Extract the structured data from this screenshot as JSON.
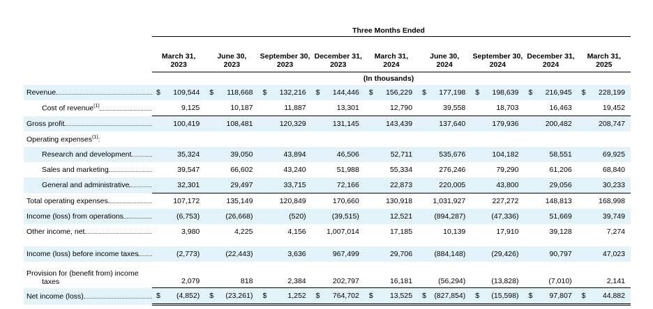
{
  "header": {
    "group_title": "Three Months Ended",
    "units": "(In thousands)",
    "periods": [
      {
        "l1": "March 31,",
        "l2": "2023"
      },
      {
        "l1": "June 30,",
        "l2": "2023"
      },
      {
        "l1": "September 30,",
        "l2": "2023"
      },
      {
        "l1": "December 31,",
        "l2": "2023"
      },
      {
        "l1": "March 31,",
        "l2": "2024"
      },
      {
        "l1": "June 30,",
        "l2": "2024"
      },
      {
        "l1": "September 30,",
        "l2": "2024"
      },
      {
        "l1": "December 31,",
        "l2": "2024"
      },
      {
        "l1": "March 31,",
        "l2": "2025"
      }
    ]
  },
  "footnote_mark": "(1)",
  "currency_symbol": "$",
  "rows": {
    "revenue": {
      "label": "Revenue",
      "values": [
        "109,544",
        "118,668",
        "132,216",
        "144,446",
        "156,229",
        "177,198",
        "198,639",
        "216,945",
        "228,199"
      ]
    },
    "cost_of_revenue": {
      "label": "Cost of revenue",
      "values": [
        "9,125",
        "10,187",
        "11,887",
        "13,301",
        "12,790",
        "39,558",
        "18,703",
        "16,463",
        "19,452"
      ]
    },
    "gross_profit": {
      "label": "Gross profit",
      "values": [
        "100,419",
        "108,481",
        "120,329",
        "131,145",
        "143,439",
        "137,640",
        "179,936",
        "200,482",
        "208,747"
      ]
    },
    "opex_header": {
      "label": "Operating expenses",
      "suffix": ":"
    },
    "rnd": {
      "label": "Research and development",
      "values": [
        "35,324",
        "39,050",
        "43,894",
        "46,506",
        "52,711",
        "535,676",
        "104,182",
        "58,551",
        "69,925"
      ]
    },
    "snm": {
      "label": "Sales and marketing",
      "values": [
        "39,547",
        "66,602",
        "43,240",
        "51,988",
        "55,334",
        "276,246",
        "79,290",
        "61,206",
        "68,840"
      ]
    },
    "gna": {
      "label": "General and administrative",
      "values": [
        "32,301",
        "29,497",
        "33,715",
        "72,166",
        "22,873",
        "220,005",
        "43,800",
        "29,056",
        "30,233"
      ]
    },
    "total_opex": {
      "label": "Total operating expenses",
      "values": [
        "107,172",
        "135,149",
        "120,849",
        "170,660",
        "130,918",
        "1,031,927",
        "227,272",
        "148,813",
        "168,998"
      ]
    },
    "income_ops": {
      "label": "Income (loss) from operations",
      "values": [
        "(6,753)",
        "(26,668)",
        "(520)",
        "(39,515)",
        "12,521",
        "(894,287)",
        "(47,336)",
        "51,669",
        "39,749"
      ]
    },
    "other_income": {
      "label": "Other income, net",
      "values": [
        "3,980",
        "4,225",
        "4,156",
        "1,007,014",
        "17,185",
        "10,139",
        "17,910",
        "39,128",
        "7,274"
      ]
    },
    "income_before_tax": {
      "label": "Income (loss) before income taxes",
      "values": [
        "(2,773)",
        "(22,443)",
        "3,636",
        "967,499",
        "29,706",
        "(884,148)",
        "(29,426)",
        "90,797",
        "47,023"
      ]
    },
    "tax_provision": {
      "label1": "Provision for (benefit from) income",
      "label2": "taxes",
      "values": [
        "2,079",
        "818",
        "2,384",
        "202,797",
        "16,181",
        "(56,294)",
        "(13,828)",
        "(7,010)",
        "2,141"
      ]
    },
    "net_income": {
      "label": "Net income (loss)",
      "values": [
        "(4,852)",
        "(23,261)",
        "1,252",
        "764,702",
        "13,525",
        "(827,854)",
        "(15,598)",
        "97,807",
        "44,882"
      ]
    }
  }
}
